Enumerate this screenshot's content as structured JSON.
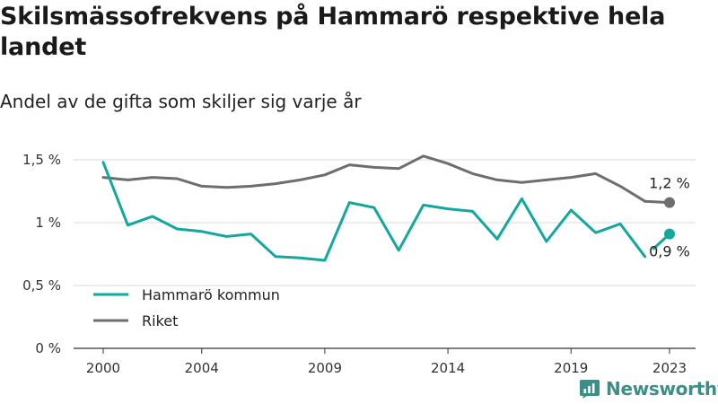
{
  "title": "Skilsmässofrekvens på Hammarö respektive hela landet",
  "subtitle": "Andel av de gifta som skiljer sig varje år",
  "brand": {
    "name": "Newsworthy",
    "icon": "newsworthy-logo-icon",
    "color": "#3c8f86"
  },
  "chart_data": {
    "type": "line",
    "x": [
      2000,
      2001,
      2002,
      2003,
      2004,
      2005,
      2006,
      2007,
      2008,
      2009,
      2010,
      2011,
      2012,
      2013,
      2014,
      2015,
      2016,
      2017,
      2018,
      2019,
      2020,
      2021,
      2022,
      2023
    ],
    "xticks": [
      2000,
      2004,
      2009,
      2014,
      2019,
      2023
    ],
    "xtick_labels": [
      "2000",
      "2004",
      "2009",
      "2014",
      "2019",
      "2023"
    ],
    "ylim": [
      0,
      1.5
    ],
    "yticks": [
      0,
      0.5,
      1,
      1.5
    ],
    "ytick_labels": [
      "0 %",
      "0,5 %",
      "1 %",
      "1,5 %"
    ],
    "grid": true,
    "legend_position": "bottom-left",
    "series": [
      {
        "name": "Hammarö kommun",
        "color": "#13a89e",
        "values": [
          1.48,
          0.98,
          1.05,
          0.95,
          0.93,
          0.89,
          0.91,
          0.73,
          0.72,
          0.7,
          1.16,
          1.12,
          0.78,
          1.14,
          1.11,
          1.09,
          0.87,
          1.19,
          0.85,
          1.1,
          0.92,
          0.99,
          0.73,
          0.91
        ],
        "end_label": "0,9 %"
      },
      {
        "name": "Riket",
        "color": "#6d6d72",
        "values": [
          1.36,
          1.34,
          1.36,
          1.35,
          1.29,
          1.28,
          1.29,
          1.31,
          1.34,
          1.38,
          1.46,
          1.44,
          1.43,
          1.53,
          1.47,
          1.39,
          1.34,
          1.32,
          1.34,
          1.36,
          1.39,
          1.29,
          1.17,
          1.16
        ],
        "end_label": "1,2 %"
      }
    ]
  }
}
